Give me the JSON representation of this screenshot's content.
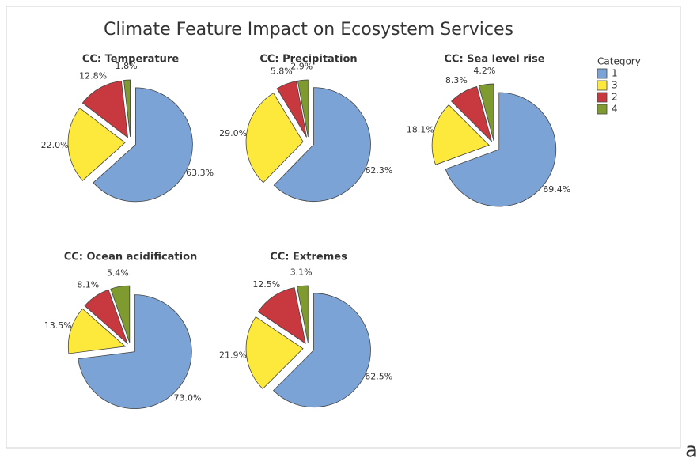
{
  "title": "Climate Feature Impact on Ecosystem Services",
  "legend_title": "Category",
  "caption": "a",
  "chart_data": [
    {
      "type": "pie",
      "title": "CC: Temperature",
      "categories": [
        "1",
        "3",
        "2",
        "4"
      ],
      "values": [
        63.3,
        22.0,
        12.8,
        1.8
      ],
      "value_labels": [
        "63.3%",
        "22.0%",
        "12.8%",
        "1.8%"
      ],
      "colors": [
        "#7ba3d6",
        "#fde93b",
        "#c8393f",
        "#7f9a2f"
      ]
    },
    {
      "type": "pie",
      "title": "CC: Precipitation",
      "categories": [
        "1",
        "3",
        "2",
        "4"
      ],
      "values": [
        62.3,
        29.0,
        5.8,
        2.9
      ],
      "value_labels": [
        "62.3%",
        "29.0%",
        "5.8%",
        "2.9%"
      ],
      "colors": [
        "#7ba3d6",
        "#fde93b",
        "#c8393f",
        "#7f9a2f"
      ]
    },
    {
      "type": "pie",
      "title": "CC: Sea level rise",
      "categories": [
        "1",
        "3",
        "2",
        "4"
      ],
      "values": [
        69.4,
        18.1,
        8.3,
        4.2
      ],
      "value_labels": [
        "69.4%",
        "18.1%",
        "8.3%",
        "4.2%"
      ],
      "colors": [
        "#7ba3d6",
        "#fde93b",
        "#c8393f",
        "#7f9a2f"
      ]
    },
    {
      "type": "pie",
      "title": "CC: Ocean acidification",
      "categories": [
        "1",
        "3",
        "2",
        "4"
      ],
      "values": [
        73.0,
        13.5,
        8.1,
        5.4
      ],
      "value_labels": [
        "73.0%",
        "13.5%",
        "8.1%",
        "5.4%"
      ],
      "colors": [
        "#7ba3d6",
        "#fde93b",
        "#c8393f",
        "#7f9a2f"
      ]
    },
    {
      "type": "pie",
      "title": "CC: Extremes",
      "categories": [
        "1",
        "3",
        "2",
        "4"
      ],
      "values": [
        62.5,
        21.9,
        12.5,
        3.1
      ],
      "value_labels": [
        "62.5%",
        "21.9%",
        "12.5%",
        "3.1%"
      ],
      "colors": [
        "#7ba3d6",
        "#fde93b",
        "#c8393f",
        "#7f9a2f"
      ]
    }
  ]
}
